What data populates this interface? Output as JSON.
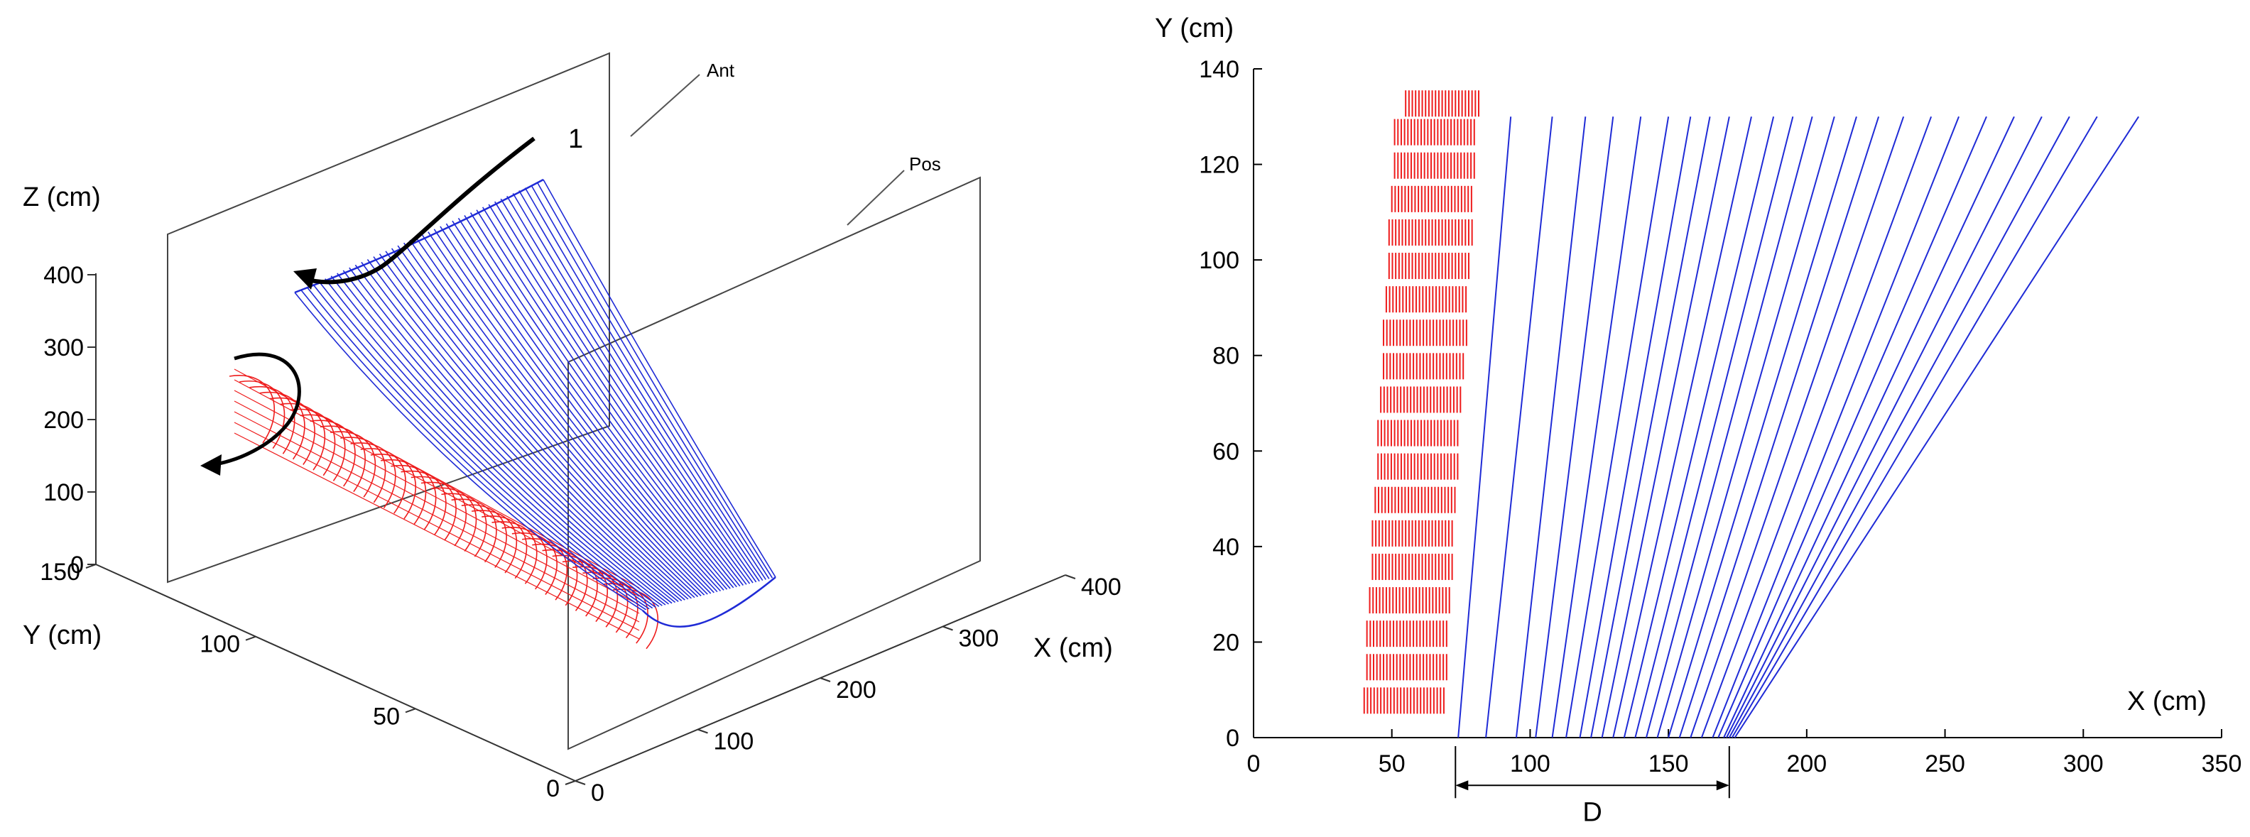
{
  "figure": {
    "left_panel": {
      "z_axis": {
        "label": "Z (cm)",
        "ticks": [
          "0",
          "100",
          "200",
          "300",
          "400"
        ]
      },
      "y_axis": {
        "label": "Y (cm)",
        "ticks": [
          "0",
          "50",
          "100",
          "150"
        ]
      },
      "x_axis": {
        "label": "X (cm)",
        "ticks": [
          "0",
          "100",
          "200",
          "300",
          "400"
        ]
      },
      "callouts": {
        "anterior": "Ant",
        "posterior": "Pos",
        "step_number": "1"
      },
      "colors": {
        "blue_surface": "#1f2bd6",
        "red_surface": "#ee1c1c",
        "arrow": "#000000"
      }
    },
    "right_panel": {
      "y_axis": {
        "label": "Y (cm)",
        "ticks": [
          "0",
          "20",
          "40",
          "60",
          "80",
          "100",
          "120",
          "140"
        ]
      },
      "x_axis": {
        "label": "X (cm)",
        "ticks": [
          "0",
          "50",
          "100",
          "150",
          "200",
          "250",
          "300",
          "350"
        ]
      },
      "distance_label": "D"
    }
  },
  "chart_data": [
    {
      "type": "line",
      "title": "",
      "description": "3D surfaces: blue swept surface from posterior toe to anterior head, red swept cylinder along Y",
      "xlabel": "X (cm)",
      "ylabel": "Y (cm)",
      "zlabel": "Z (cm)",
      "xlim": [
        0,
        400
      ],
      "ylim": [
        0,
        150
      ],
      "zlim": [
        0,
        400
      ],
      "series": [
        {
          "name": "blue surface",
          "color": "#1f2bd6",
          "y_range": [
            0,
            130
          ],
          "x_range": [
            60,
            400
          ],
          "z_range": [
            0,
            300
          ]
        },
        {
          "name": "red surface",
          "color": "#ee1c1c",
          "y_range": [
            0,
            130
          ],
          "x_range": [
            40,
            90
          ],
          "z_range": [
            50,
            220
          ]
        }
      ],
      "annotations": [
        "Ant",
        "Pos",
        "1"
      ]
    },
    {
      "type": "line",
      "title": "",
      "xlabel": "X (cm)",
      "ylabel": "Y (cm)",
      "xlim": [
        0,
        350
      ],
      "ylim": [
        0,
        140
      ],
      "series": [
        {
          "name": "red footprint",
          "color": "#ee1c1c",
          "segments": [
            [
              40,
              5,
              70,
              5
            ],
            [
              41,
              12,
              70,
              12
            ],
            [
              41,
              19,
              71,
              19
            ],
            [
              42,
              26,
              72,
              26
            ],
            [
              43,
              33,
              73,
              33
            ],
            [
              43,
              40,
              73,
              40
            ],
            [
              44,
              47,
              74,
              47
            ],
            [
              45,
              54,
              75,
              54
            ],
            [
              45,
              61,
              75,
              61
            ],
            [
              46,
              68,
              76,
              68
            ],
            [
              47,
              75,
              77,
              75
            ],
            [
              47,
              82,
              78,
              82
            ],
            [
              48,
              89,
              78,
              89
            ],
            [
              49,
              96,
              79,
              96
            ],
            [
              49,
              103,
              80,
              103
            ],
            [
              50,
              110,
              80,
              110
            ],
            [
              51,
              117,
              81,
              117
            ],
            [
              51,
              124,
              81,
              124
            ],
            [
              55,
              130,
              82,
              130
            ]
          ]
        },
        {
          "name": "blue lines",
          "color": "#1f2bd6",
          "lines": [
            [
              74,
              0,
              93,
              130
            ],
            [
              84,
              0,
              108,
              130
            ],
            [
              95,
              0,
              120,
              130
            ],
            [
              102,
              0,
              130,
              130
            ],
            [
              108,
              0,
              140,
              130
            ],
            [
              113,
              0,
              150,
              130
            ],
            [
              118,
              0,
              158,
              130
            ],
            [
              122,
              0,
              165,
              130
            ],
            [
              126,
              0,
              172,
              130
            ],
            [
              130,
              0,
              180,
              130
            ],
            [
              134,
              0,
              188,
              130
            ],
            [
              138,
              0,
              195,
              130
            ],
            [
              142,
              0,
              202,
              130
            ],
            [
              146,
              0,
              210,
              130
            ],
            [
              150,
              0,
              218,
              130
            ],
            [
              154,
              0,
              226,
              130
            ],
            [
              158,
              0,
              235,
              130
            ],
            [
              162,
              0,
              245,
              130
            ],
            [
              166,
              0,
              255,
              130
            ],
            [
              168,
              0,
              265,
              130
            ],
            [
              170,
              0,
              275,
              130
            ],
            [
              171,
              0,
              285,
              130
            ],
            [
              172,
              0,
              295,
              130
            ],
            [
              173,
              0,
              305,
              130
            ],
            [
              174,
              0,
              320,
              130
            ]
          ]
        }
      ],
      "annotations": [
        {
          "text": "D",
          "x_from": 73,
          "x_to": 172,
          "y": -10
        }
      ]
    }
  ]
}
